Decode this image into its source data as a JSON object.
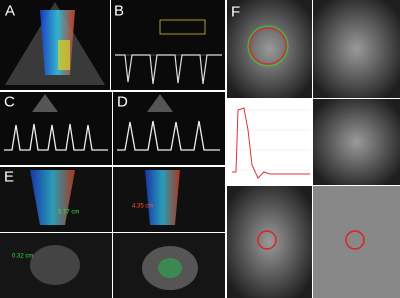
{
  "panels": [
    {
      "label": "A"
    },
    {
      "label": "B"
    },
    {
      "label": "C"
    },
    {
      "label": "D"
    },
    {
      "label": "E"
    },
    {
      "label": "F"
    }
  ],
  "measurements": [
    "6.77 cm",
    "4.35 cm",
    "0.32 cm"
  ]
}
